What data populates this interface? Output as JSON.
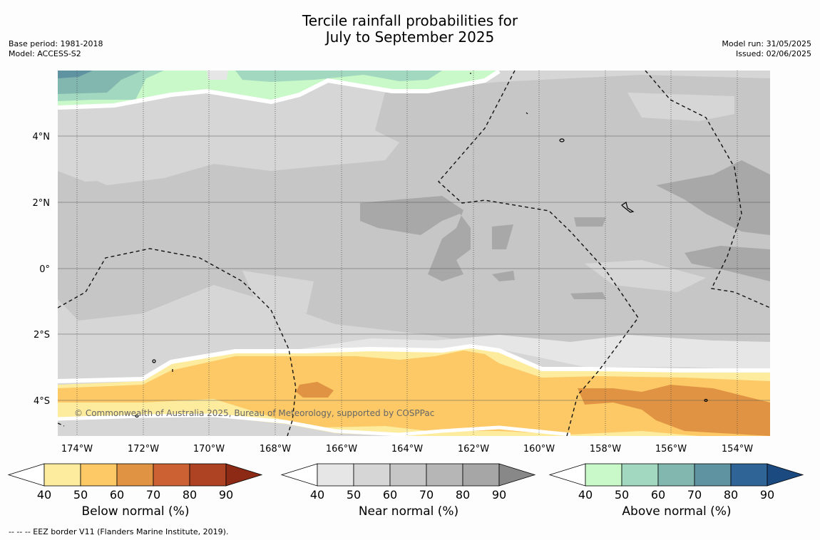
{
  "title_line1": "Tercile rainfall probabilities for",
  "title_line2": "July to September 2025",
  "base_period": "Base period: 1981-2018",
  "model": "Model: ACCESS-S2",
  "model_run": "Model run: 31/05/2025",
  "issued": "Issued: 02/06/2025",
  "copyright": "© Commonwealth of Australia 2025, Bureau of Meteorology, supported by COSPPac",
  "footer_note": "-- -- -- EEZ border V11 (Flanders Marine Institute, 2019).",
  "map": {
    "lon_labels": [
      "174°W",
      "172°W",
      "170°W",
      "168°W",
      "166°W",
      "164°W",
      "162°W",
      "160°W",
      "158°W",
      "156°W",
      "154°W"
    ],
    "lat_labels": [
      "4°N",
      "2°N",
      "0°",
      "2°S",
      "4°S"
    ]
  },
  "legends": [
    {
      "name": "Below normal (%)",
      "ticks": [
        "40",
        "50",
        "60",
        "70",
        "80",
        "90"
      ],
      "colors": [
        "#fdec9e",
        "#fdc966",
        "#e09443",
        "#cc6133",
        "#ad4322",
        "#8c2a15"
      ]
    },
    {
      "name": "Near normal (%)",
      "ticks": [
        "40",
        "50",
        "60",
        "70",
        "80",
        "90"
      ],
      "colors": [
        "#e6e6e6",
        "#d6d6d6",
        "#c6c6c6",
        "#b6b6b6",
        "#a6a6a6",
        "#888888"
      ]
    },
    {
      "name": "Above normal (%)",
      "ticks": [
        "40",
        "50",
        "60",
        "70",
        "80",
        "90"
      ],
      "colors": [
        "#c9f9c9",
        "#a2d8bf",
        "#82b7b0",
        "#5f93a1",
        "#2f6496",
        "#1a4a80"
      ]
    }
  ]
}
